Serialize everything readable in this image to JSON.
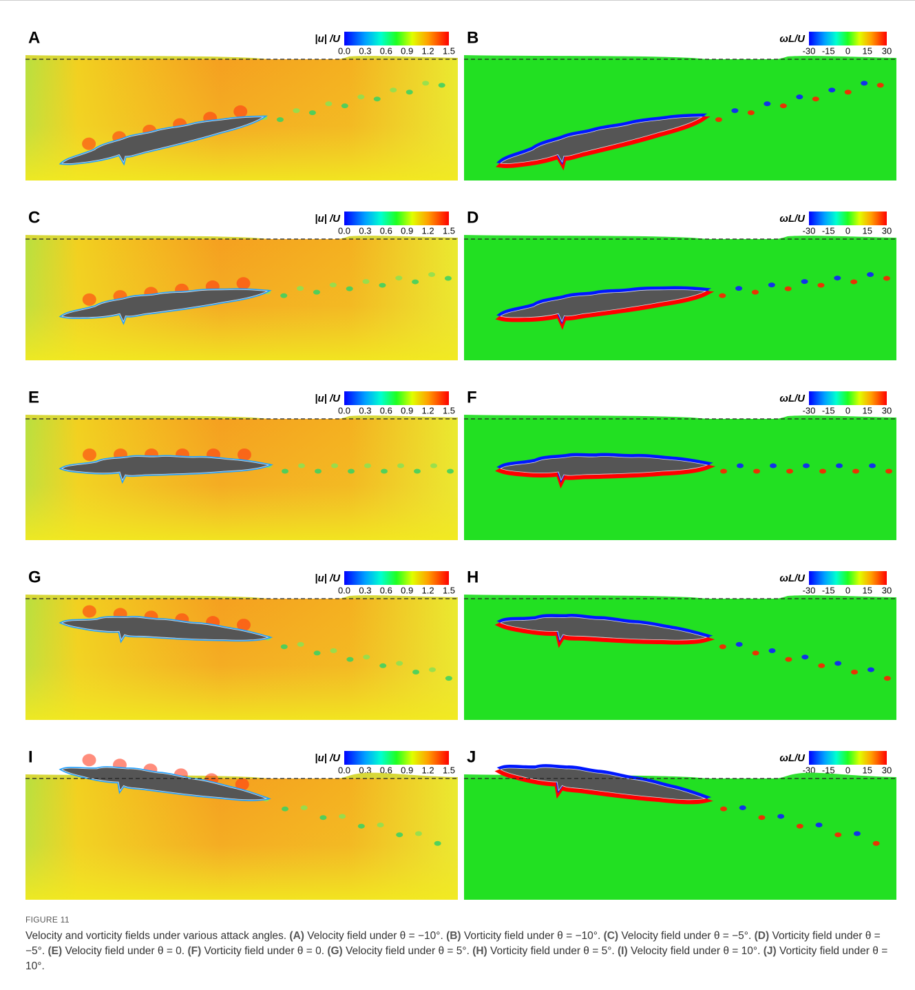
{
  "panels": [
    {
      "letter": "A",
      "colorbar_label": "|u| /U",
      "colorbar_ticks": [
        "0.0",
        "0.3",
        "0.6",
        "0.9",
        "1.2",
        "1.5"
      ]
    },
    {
      "letter": "B",
      "colorbar_label": "ωL/U",
      "colorbar_ticks": [
        "-30",
        "-15",
        "0",
        "15",
        "30"
      ]
    },
    {
      "letter": "C",
      "colorbar_label": "|u| /U",
      "colorbar_ticks": [
        "0.0",
        "0.3",
        "0.6",
        "0.9",
        "1.2",
        "1.5"
      ]
    },
    {
      "letter": "D",
      "colorbar_label": "ωL/U",
      "colorbar_ticks": [
        "-30",
        "-15",
        "0",
        "15",
        "30"
      ]
    },
    {
      "letter": "E",
      "colorbar_label": "|u| /U",
      "colorbar_ticks": [
        "0.0",
        "0.3",
        "0.6",
        "0.9",
        "1.2",
        "1.5"
      ]
    },
    {
      "letter": "F",
      "colorbar_label": "ωL/U",
      "colorbar_ticks": [
        "-30",
        "-15",
        "0",
        "15",
        "30"
      ]
    },
    {
      "letter": "G",
      "colorbar_label": "|u| /U",
      "colorbar_ticks": [
        "0.0",
        "0.3",
        "0.6",
        "0.9",
        "1.2",
        "1.5"
      ]
    },
    {
      "letter": "H",
      "colorbar_label": "ωL/U",
      "colorbar_ticks": [
        "-30",
        "-15",
        "0",
        "15",
        "30"
      ]
    },
    {
      "letter": "I",
      "colorbar_label": "|u| /U",
      "colorbar_ticks": [
        "0.0",
        "0.3",
        "0.6",
        "0.9",
        "1.2",
        "1.5"
      ]
    },
    {
      "letter": "J",
      "colorbar_label": "ωL/U",
      "colorbar_ticks": [
        "-30",
        "-15",
        "0",
        "15",
        "30"
      ]
    }
  ],
  "caption": {
    "figure_label": "FIGURE 11",
    "intro": "Velocity and vorticity fields under various attack angles.",
    "items": [
      {
        "label": "(A)",
        "text": "Velocity field under θ = −10°."
      },
      {
        "label": "(B)",
        "text": "Vorticity field under θ = −10°."
      },
      {
        "label": "(C)",
        "text": "Velocity field under θ = −5°."
      },
      {
        "label": "(D)",
        "text": "Vorticity field under θ = −5°."
      },
      {
        "label": "(E)",
        "text": "Velocity field under θ = 0."
      },
      {
        "label": "(F)",
        "text": "Vorticity field under θ = 0."
      },
      {
        "label": "(G)",
        "text": "Velocity field under θ = 5°."
      },
      {
        "label": "(H)",
        "text": "Vorticity field under θ = 5°."
      },
      {
        "label": "(I)",
        "text": "Velocity field under θ = 10°."
      },
      {
        "label": "(J)",
        "text": "Vorticity field under θ = 10°."
      }
    ]
  }
}
